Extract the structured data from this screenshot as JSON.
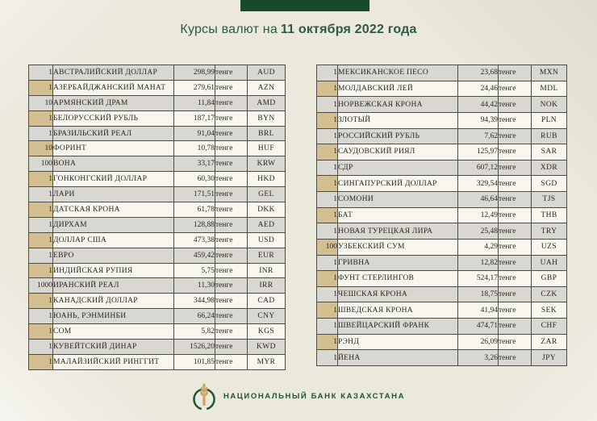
{
  "header": {
    "title_prefix": "Курсы валют на",
    "title_date": "11 октября 2022 года"
  },
  "labels": {
    "tenge": "тенге"
  },
  "table_left": {
    "rows": [
      {
        "qty": "1",
        "name": "АВСТРАЛИЙСКИЙ ДОЛЛАР",
        "rate": "298,99",
        "code": "AUD"
      },
      {
        "qty": "1",
        "name": "АЗЕРБАЙДЖАНСКИЙ МАНАТ",
        "rate": "279,61",
        "code": "AZN"
      },
      {
        "qty": "10",
        "name": "АРМЯНСКИЙ ДРАМ",
        "rate": "11,84",
        "code": "AMD"
      },
      {
        "qty": "1",
        "name": "БЕЛОРУССКИЙ РУБЛЬ",
        "rate": "187,17",
        "code": "BYN"
      },
      {
        "qty": "1",
        "name": "БРАЗИЛЬСКИЙ РЕАЛ",
        "rate": "91,04",
        "code": "BRL"
      },
      {
        "qty": "10",
        "name": "ФОРИНТ",
        "rate": "10,78",
        "code": "HUF"
      },
      {
        "qty": "100",
        "name": "ВОНА",
        "rate": "33,17",
        "code": "KRW"
      },
      {
        "qty": "1",
        "name": "ГОНКОНГСКИЙ ДОЛЛАР",
        "rate": "60,30",
        "code": "HKD"
      },
      {
        "qty": "1",
        "name": "ЛАРИ",
        "rate": "171,51",
        "code": "GEL"
      },
      {
        "qty": "1",
        "name": "ДАТСКАЯ КРОНА",
        "rate": "61,78",
        "code": "DKK"
      },
      {
        "qty": "1",
        "name": "ДИРХАМ",
        "rate": "128,88",
        "code": "AED"
      },
      {
        "qty": "1",
        "name": "ДОЛЛАР США",
        "rate": "473,38",
        "code": "USD"
      },
      {
        "qty": "1",
        "name": "ЕВРО",
        "rate": "459,42",
        "code": "EUR"
      },
      {
        "qty": "1",
        "name": "ИНДИЙСКАЯ РУПИЯ",
        "rate": "5,75",
        "code": "INR"
      },
      {
        "qty": "1000",
        "name": "ИРАНСКИЙ РЕАЛ",
        "rate": "11,30",
        "code": "IRR"
      },
      {
        "qty": "1",
        "name": "КАНАДСКИЙ ДОЛЛАР",
        "rate": "344,98",
        "code": "CAD"
      },
      {
        "qty": "1",
        "name": "ЮАНЬ, РЭНМИНБИ",
        "rate": "66,24",
        "code": "CNY"
      },
      {
        "qty": "1",
        "name": "СОМ",
        "rate": "5,82",
        "code": "KGS"
      },
      {
        "qty": "1",
        "name": "КУВЕЙТСКИЙ ДИНАР",
        "rate": "1526,20",
        "code": "KWD"
      },
      {
        "qty": "1",
        "name": "МАЛАЙЗИЙСКИЙ РИНГГИТ",
        "rate": "101,85",
        "code": "MYR"
      }
    ]
  },
  "table_right": {
    "rows": [
      {
        "qty": "1",
        "name": "МЕКСИКАНСКОЕ ПЕСО",
        "rate": "23,68",
        "code": "MXN"
      },
      {
        "qty": "1",
        "name": "МОЛДАВСКИЙ ЛЕЙ",
        "rate": "24,46",
        "code": "MDL"
      },
      {
        "qty": "1",
        "name": "НОРВЕЖСКАЯ КРОНА",
        "rate": "44,42",
        "code": "NOK"
      },
      {
        "qty": "1",
        "name": "ЗЛОТЫЙ",
        "rate": "94,39",
        "code": "PLN"
      },
      {
        "qty": "1",
        "name": "РОССИЙСКИЙ РУБЛЬ",
        "rate": "7,62",
        "code": "RUB"
      },
      {
        "qty": "1",
        "name": "САУДОВСКИЙ РИЯЛ",
        "rate": "125,97",
        "code": "SAR"
      },
      {
        "qty": "1",
        "name": "СДР",
        "rate": "607,12",
        "code": "XDR"
      },
      {
        "qty": "1",
        "name": "СИНГАПУРСКИЙ ДОЛЛАР",
        "rate": "329,54",
        "code": "SGD"
      },
      {
        "qty": "1",
        "name": "СОМОНИ",
        "rate": "46,64",
        "code": "TJS"
      },
      {
        "qty": "1",
        "name": "БАТ",
        "rate": "12,49",
        "code": "THB"
      },
      {
        "qty": "1",
        "name": "НОВАЯ ТУРЕЦКАЯ ЛИРА",
        "rate": "25,48",
        "code": "TRY"
      },
      {
        "qty": "100",
        "name": "УЗБЕКСКИЙ СУМ",
        "rate": "4,29",
        "code": "UZS"
      },
      {
        "qty": "1",
        "name": "ГРИВНА",
        "rate": "12,82",
        "code": "UAH"
      },
      {
        "qty": "1",
        "name": "ФУНТ СТЕРЛИНГОВ",
        "rate": "524,17",
        "code": "GBP"
      },
      {
        "qty": "1",
        "name": "ЧЕШСКАЯ КРОНА",
        "rate": "18,75",
        "code": "CZK"
      },
      {
        "qty": "1",
        "name": "ШВЕДСКАЯ КРОНА",
        "rate": "41,94",
        "code": "SEK"
      },
      {
        "qty": "1",
        "name": "ШВЕЙЦАРСКИЙ ФРАНК",
        "rate": "474,71",
        "code": "CHF"
      },
      {
        "qty": "1",
        "name": "РЭНД",
        "rate": "26,09",
        "code": "ZAR"
      },
      {
        "qty": "1",
        "name": "ЙЕНА",
        "rate": "3,26",
        "code": "JPY"
      }
    ]
  },
  "footer": {
    "bank_name": "НАЦИОНАЛЬНЫЙ БАНК КАЗАХСТАНА",
    "logo": "wheat-wreath-logo"
  },
  "colors": {
    "ribbon_green": "#174a2b",
    "title_green": "#2c5b42",
    "logo_green": "#1d5434",
    "wheat_gold": "#c9a665",
    "row_gray": "#d8d7d2",
    "row_light": "#f8f6ee",
    "qty_tan": "#d3be90",
    "background": "#ebe8dc"
  }
}
